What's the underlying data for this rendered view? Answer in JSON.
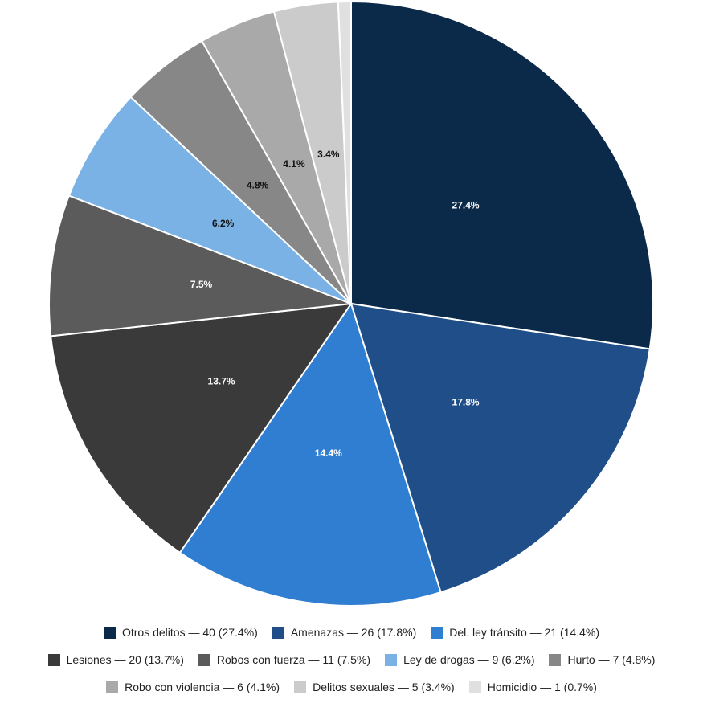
{
  "chart_data": {
    "type": "pie",
    "title": "",
    "start": "top",
    "direction": "clockwise",
    "legend_position": "bottom",
    "slices": [
      {
        "label": "Otros delitos",
        "value": 40,
        "percent": "27.4%",
        "legend": "Otros delitos — 40 (27.4%)",
        "color": "#0b2a4a",
        "label_color": "#ffffff"
      },
      {
        "label": "Amenazas",
        "value": 26,
        "percent": "17.8%",
        "legend": "Amenazas — 26 (17.8%)",
        "color": "#1f4e89",
        "label_color": "#ffffff"
      },
      {
        "label": "Del. ley tránsito",
        "value": 21,
        "percent": "14.4%",
        "legend": "Del. ley tránsito — 21 (14.4%)",
        "color": "#2f7ed2",
        "label_color": "#ffffff"
      },
      {
        "label": "Lesiones",
        "value": 20,
        "percent": "13.7%",
        "legend": "Lesiones — 20 (13.7%)",
        "color": "#3a3a3a",
        "label_color": "#ffffff"
      },
      {
        "label": "Robos con fuerza",
        "value": 11,
        "percent": "7.5%",
        "legend": "Robos con fuerza — 11 (7.5%)",
        "color": "#5b5b5b",
        "label_color": "#ffffff"
      },
      {
        "label": "Ley de drogas",
        "value": 9,
        "percent": "6.2%",
        "legend": "Ley de drogas — 9 (6.2%)",
        "color": "#7ab2e6",
        "label_color": "#111111"
      },
      {
        "label": "Hurto",
        "value": 7,
        "percent": "4.8%",
        "legend": "Hurto — 7 (4.8%)",
        "color": "#878787",
        "label_color": "#111111"
      },
      {
        "label": "Robo con violencia",
        "value": 6,
        "percent": "4.1%",
        "legend": "Robo con violencia — 6 (4.1%)",
        "color": "#a9a9a9",
        "label_color": "#111111"
      },
      {
        "label": "Delitos sexuales",
        "value": 5,
        "percent": "3.4%",
        "legend": "Delitos sexuales — 5 (3.4%)",
        "color": "#cbcbcb",
        "label_color": "#111111"
      },
      {
        "label": "Homicidio",
        "value": 1,
        "percent": "0.7%",
        "legend": "Homicidio — 1 (0.7%)",
        "color": "#e0e0e0",
        "label_color": "#111111",
        "show_label": false
      }
    ]
  }
}
